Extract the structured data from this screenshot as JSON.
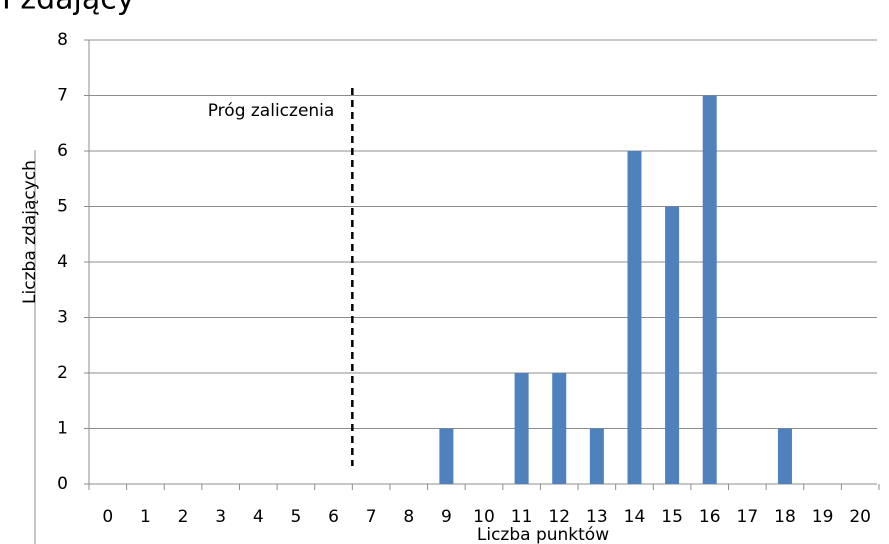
{
  "chart_data": {
    "type": "bar",
    "title": "I zdający",
    "categories": [
      "0",
      "1",
      "2",
      "3",
      "4",
      "5",
      "6",
      "7",
      "8",
      "9",
      "10",
      "11",
      "12",
      "13",
      "14",
      "15",
      "16",
      "17",
      "18",
      "19",
      "20"
    ],
    "values": [
      0,
      0,
      0,
      0,
      0,
      0,
      0,
      0,
      0,
      1,
      0,
      2,
      2,
      1,
      6,
      5,
      7,
      0,
      1,
      0,
      0
    ],
    "color": "#4f81bd",
    "ylim": [
      0,
      8
    ],
    "yticks": [
      0,
      1,
      2,
      3,
      4,
      5,
      6,
      7,
      8
    ],
    "grid": true,
    "xlabel": "Liczba  punktów",
    "ylabel": "Liczba  zdających",
    "annotation": {
      "text": "Próg zaliczenia",
      "x": 6.5
    }
  }
}
